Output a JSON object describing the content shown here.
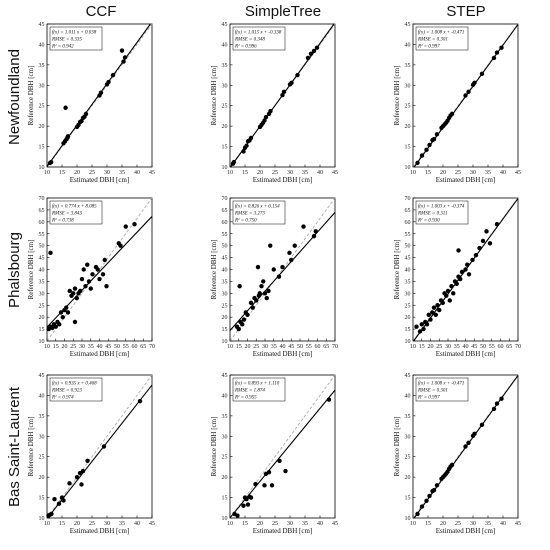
{
  "columns": [
    "CCF",
    "SimpleTree",
    "STEP"
  ],
  "rows": [
    "Newfoundland",
    "Phalsbourg",
    "Bas Saint-Laurent"
  ],
  "chart_data": [
    {
      "type": "scatter",
      "row": "Newfoundland",
      "column": "CCF",
      "xlabel": "Estimated DBH [cm]",
      "ylabel": "Reference DBH [cm]",
      "xlim": [
        10,
        45
      ],
      "ylim": [
        10,
        45
      ],
      "xticks": [
        10,
        15,
        20,
        25,
        30,
        35,
        40,
        45
      ],
      "yticks": [
        10,
        15,
        20,
        25,
        30,
        35,
        40,
        45
      ],
      "fit": {
        "slope": 1.011,
        "intercept": 0.038
      },
      "stats": [
        "f(x) = 1.011 x + 0.038",
        "RMSE = 0.335",
        "R² = 0.942"
      ],
      "x": [
        11,
        11.4,
        15.5,
        16,
        16.5,
        16.8,
        17,
        20,
        20.5,
        21,
        21.5,
        22,
        22.5,
        23,
        27.5,
        28,
        30,
        30.5,
        32,
        35,
        35.5,
        36,
        16.2
      ],
      "y": [
        11,
        11.2,
        15.8,
        16.3,
        16.8,
        17.2,
        17.5,
        19.8,
        20.3,
        21,
        21.2,
        22,
        22.3,
        23,
        27.5,
        28.2,
        30.2,
        30.8,
        32.5,
        38.5,
        35.8,
        36.8,
        24.5
      ]
    },
    {
      "type": "scatter",
      "row": "Newfoundland",
      "column": "SimpleTree",
      "xlabel": "Estimated DBH [cm]",
      "ylabel": "Reference DBH [cm]",
      "xlim": [
        10,
        45
      ],
      "ylim": [
        10,
        45
      ],
      "xticks": [
        10,
        15,
        20,
        25,
        30,
        35,
        40,
        45
      ],
      "yticks": [
        10,
        15,
        20,
        25,
        30,
        35,
        40,
        45
      ],
      "fit": {
        "slope": 1.015,
        "intercept": -0.338
      },
      "stats": [
        "f(x) = 1.015 x + -0.338",
        "RMSE = 0.348",
        "R² = 0.996"
      ],
      "x": [
        11,
        11.3,
        14.5,
        15,
        15.5,
        16,
        16.5,
        17,
        20,
        20.5,
        21,
        21.5,
        22,
        23,
        23.5,
        27.5,
        28,
        30,
        30.5,
        32.5,
        36,
        37,
        38,
        39
      ],
      "y": [
        10.8,
        11.2,
        13.8,
        14.7,
        15.2,
        16.3,
        16.5,
        17.1,
        19.8,
        20.3,
        20.8,
        21.4,
        22.2,
        23,
        23.7,
        27.6,
        28.4,
        30.2,
        30.6,
        32.5,
        36.7,
        37.7,
        38.4,
        39.2
      ]
    },
    {
      "type": "scatter",
      "row": "Newfoundland",
      "column": "STEP",
      "xlabel": "Estimated DBH [cm]",
      "ylabel": "Reference DBH [cm]",
      "xlim": [
        10,
        45
      ],
      "ylim": [
        10,
        45
      ],
      "xticks": [
        10,
        15,
        20,
        25,
        30,
        35,
        40,
        45
      ],
      "yticks": [
        10,
        15,
        20,
        25,
        30,
        35,
        40,
        45
      ],
      "fit": {
        "slope": 1.008,
        "intercept": -0.471
      },
      "stats": [
        "f(x) = 1.008 x + -0.471",
        "RMSE = 0.301",
        "R² = 0.997"
      ],
      "x": [
        11.5,
        13,
        14.5,
        15.5,
        16.5,
        17,
        18,
        19.5,
        20,
        20.5,
        21,
        21.5,
        22,
        22.5,
        23,
        27.5,
        28.5,
        30,
        30.5,
        33,
        37,
        38,
        39.5
      ],
      "y": [
        11,
        12.8,
        14.2,
        15.4,
        16.6,
        16.8,
        18,
        19.6,
        20,
        20.4,
        20.8,
        21.3,
        22,
        22.6,
        23,
        27.5,
        28.4,
        30.1,
        30.6,
        32.8,
        36.7,
        38,
        39.2
      ]
    },
    {
      "type": "scatter",
      "row": "Phalsbourg",
      "column": "CCF",
      "xlabel": "Estimated DBH [cm]",
      "ylabel": "Reference DBH [cm]",
      "xlim": [
        10,
        70
      ],
      "ylim": [
        10,
        70
      ],
      "xticks": [
        10,
        15,
        20,
        25,
        30,
        35,
        40,
        45,
        50,
        55,
        60,
        65,
        70
      ],
      "yticks": [
        10,
        15,
        20,
        25,
        30,
        35,
        40,
        45,
        50,
        55,
        60,
        65,
        70
      ],
      "fit": {
        "slope": 0.774,
        "intercept": 8.085
      },
      "stats": [
        "f(x) = 0.774 x + 8.085",
        "RMSE = 3.843",
        "R² = 0.738"
      ],
      "x": [
        11,
        12,
        13,
        14,
        15,
        16,
        17,
        18,
        19,
        20,
        21,
        22,
        23,
        24,
        25,
        26,
        27,
        28,
        29,
        30,
        31,
        32,
        33,
        34,
        35,
        36,
        38,
        39,
        40,
        42,
        43,
        44,
        51,
        52,
        55,
        60,
        12,
        26
      ],
      "y": [
        15,
        16,
        15.5,
        17,
        16,
        18,
        17,
        22,
        20,
        23,
        24,
        22,
        31,
        29,
        30,
        32,
        28,
        30,
        31,
        36,
        40,
        33,
        42,
        35,
        32,
        38,
        41,
        40,
        36,
        38,
        44,
        33,
        51,
        50,
        58,
        59,
        47,
        18
      ]
    },
    {
      "type": "scatter",
      "row": "Phalsbourg",
      "column": "SimpleTree",
      "xlabel": "Estimated DBH [cm]",
      "ylabel": "Reference DBH [cm]",
      "xlim": [
        10,
        70
      ],
      "ylim": [
        10,
        70
      ],
      "xticks": [
        10,
        15,
        20,
        25,
        30,
        35,
        40,
        45,
        50,
        55,
        60,
        65,
        70
      ],
      "yticks": [
        10,
        15,
        20,
        25,
        30,
        35,
        40,
        45,
        50,
        55,
        60,
        65,
        70
      ],
      "fit": {
        "slope": 0.826,
        "intercept": 6.154
      },
      "stats": [
        "f(x) = 0.826 x + 6.154",
        "RMSE = 3.273",
        "R² = 0.750"
      ],
      "x": [
        14,
        15,
        16,
        17,
        18,
        19,
        20,
        22,
        23,
        24,
        25,
        26,
        27,
        28,
        29,
        30,
        31,
        32,
        33,
        35,
        38,
        40,
        44,
        45,
        47,
        52,
        58,
        59,
        15.5,
        26.5
      ],
      "y": [
        16,
        15,
        18,
        17,
        19,
        22,
        21,
        26,
        24,
        28,
        27,
        41,
        30,
        33,
        35,
        30,
        28,
        31,
        50,
        40,
        37,
        41,
        47,
        44,
        50,
        58,
        54,
        56,
        33,
        29
      ]
    },
    {
      "type": "scatter",
      "row": "Phalsbourg",
      "column": "STEP",
      "xlabel": "Estimated DBH [cm]",
      "ylabel": "Reference DBH [cm]",
      "xlim": [
        10,
        70
      ],
      "ylim": [
        10,
        70
      ],
      "xticks": [
        10,
        15,
        20,
        25,
        30,
        35,
        40,
        45,
        50,
        55,
        60,
        65,
        70
      ],
      "yticks": [
        10,
        15,
        20,
        25,
        30,
        35,
        40,
        45,
        50,
        55,
        60,
        65,
        70
      ],
      "fit": {
        "slope": 1.003,
        "intercept": -0.374
      },
      "stats": [
        "f(x) = 1.003 x + -0.374",
        "RMSE = 0.311",
        "R² = 0.930"
      ],
      "x": [
        12,
        14,
        15,
        16,
        17,
        18,
        19,
        20,
        21,
        22,
        23,
        24,
        25,
        26,
        27,
        28,
        29,
        30,
        31,
        32,
        33,
        34,
        35,
        36,
        37,
        38,
        40,
        41,
        42,
        44,
        46,
        48,
        50,
        52,
        54,
        58,
        36
      ],
      "y": [
        16,
        14,
        17,
        15,
        18,
        17,
        21,
        19,
        22,
        24,
        21,
        25,
        23,
        27,
        26,
        30,
        29,
        31,
        27,
        33,
        30,
        35,
        34,
        37,
        36,
        39,
        40,
        42,
        38,
        44,
        46,
        49,
        52,
        56,
        51,
        59,
        48
      ]
    },
    {
      "type": "scatter",
      "row": "Bas Saint-Laurent",
      "column": "CCF",
      "xlabel": "Estimated DBH [cm]",
      "ylabel": "Reference DBH [cm]",
      "xlim": [
        10,
        45
      ],
      "ylim": [
        10,
        45
      ],
      "xticks": [
        10,
        15,
        20,
        25,
        30,
        35,
        40,
        45
      ],
      "yticks": [
        10,
        15,
        20,
        25,
        30,
        35,
        40,
        45
      ],
      "fit": {
        "slope": 0.935,
        "intercept": 0.468
      },
      "stats": [
        "f(x) = 0.935 x + 0.468",
        "RMSE = 0.923",
        "R² = 0.974"
      ],
      "x": [
        10.5,
        11,
        11.5,
        12.5,
        14,
        15,
        15.5,
        17.5,
        20,
        21,
        21.5,
        22,
        23.5,
        29,
        41
      ],
      "y": [
        10.6,
        10.8,
        11,
        14.6,
        13.5,
        15,
        14.3,
        18.5,
        20,
        21,
        18.2,
        21.5,
        24,
        27.5,
        38.6
      ]
    },
    {
      "type": "scatter",
      "row": "Bas Saint-Laurent",
      "column": "SimpleTree",
      "xlabel": "Estimated DBH [cm]",
      "ylabel": "Reference DBH [cm]",
      "xlim": [
        10,
        45
      ],
      "ylim": [
        10,
        45
      ],
      "xticks": [
        10,
        15,
        20,
        25,
        30,
        35,
        40,
        45
      ],
      "yticks": [
        10,
        15,
        20,
        25,
        30,
        35,
        40,
        45
      ],
      "fit": {
        "slope": 0.893,
        "intercept": 1.11
      },
      "stats": [
        "f(x) = 0.893 x + 1.110",
        "RMSE = 1.874",
        "R² = 0.955"
      ],
      "x": [
        11.5,
        12.5,
        14.5,
        15,
        15.5,
        16,
        16.5,
        17,
        18.5,
        21.5,
        22,
        23,
        24,
        26.5,
        28.5,
        43
      ],
      "y": [
        11,
        10.6,
        13,
        15,
        14.6,
        13.3,
        15.2,
        15,
        18.3,
        18,
        20.8,
        21.2,
        18,
        24,
        21.5,
        39
      ]
    },
    {
      "type": "scatter",
      "row": "Bas Saint-Laurent",
      "column": "STEP",
      "xlabel": "Estimated DBH [cm]",
      "ylabel": "Reference DBH [cm]",
      "xlim": [
        10,
        45
      ],
      "ylim": [
        10,
        45
      ],
      "xticks": [
        10,
        15,
        20,
        25,
        30,
        35,
        40,
        45
      ],
      "yticks": [
        10,
        15,
        20,
        25,
        30,
        35,
        40,
        45
      ],
      "fit": {
        "slope": 1.008,
        "intercept": -0.471
      },
      "stats": [
        "f(x) = 1.008 x + -0.471",
        "RMSE = 0.301",
        "R² = 0.997"
      ],
      "x": [
        11.5,
        13,
        14.5,
        15.5,
        16.5,
        17,
        18,
        19.5,
        20,
        20.5,
        21,
        21.5,
        22,
        22.5,
        23,
        27.5,
        28.5,
        30,
        30.5,
        33,
        37,
        38,
        39.5
      ],
      "y": [
        11,
        12.8,
        14.2,
        15.4,
        16.6,
        16.8,
        18,
        19.6,
        20,
        20.4,
        20.8,
        21.3,
        22,
        22.6,
        23,
        27.5,
        28.4,
        30.1,
        30.6,
        32.8,
        36.7,
        38,
        39.2
      ]
    }
  ]
}
